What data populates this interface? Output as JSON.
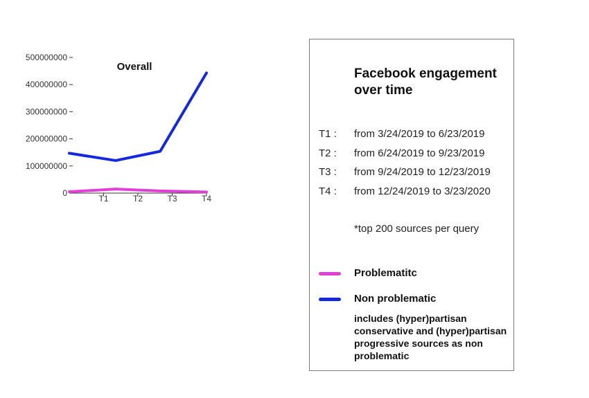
{
  "chart_data": {
    "type": "line",
    "title": "Overall",
    "categories": [
      "",
      "T1",
      "T2",
      "T3",
      "T4"
    ],
    "x_tick_labels": [
      "T1",
      "T2",
      "T3",
      "T4"
    ],
    "x_values": [
      0,
      1.35,
      2.2,
      2.65,
      4.0
    ],
    "y_ticks": [
      0,
      100000000,
      200000000,
      300000000,
      400000000,
      500000000
    ],
    "y_tick_labels": [
      "0",
      "100000000",
      "200000000",
      "300000000",
      "400000000",
      "500000000"
    ],
    "ylim": [
      0,
      500000000
    ],
    "grid": false,
    "legend_position": "right",
    "series": [
      {
        "name": "Problematitc",
        "color": "#e040d8",
        "x": [
          0,
          1.35,
          2.65,
          4.0
        ],
        "y": [
          5000000,
          15000000,
          8000000,
          4000000
        ]
      },
      {
        "name": "Non problematic",
        "color": "#1428e0",
        "x": [
          0,
          1.35,
          2.65,
          4.0
        ],
        "y": [
          147000000,
          120000000,
          154000000,
          443000000
        ]
      }
    ]
  },
  "legend": {
    "title": "Facebook engagement over time",
    "periods": [
      {
        "label": "T1 :",
        "range": "from 3/24/2019 to 6/23/2019"
      },
      {
        "label": "T2 :",
        "range": "from 6/24/2019 to 9/23/2019"
      },
      {
        "label": "T3 :",
        "range": "from 9/24/2019 to 12/23/2019"
      },
      {
        "label": "T4 :",
        "range": "from 12/24/2019 to 3/23/2020"
      }
    ],
    "note": "*top 200 sources per query",
    "problematic_label": "Problematitc",
    "non_problematic_label": "Non problematic",
    "non_problematic_desc": "includes (hyper)partisan conservative and (hyper)partisan progressive sources as non problematic"
  }
}
